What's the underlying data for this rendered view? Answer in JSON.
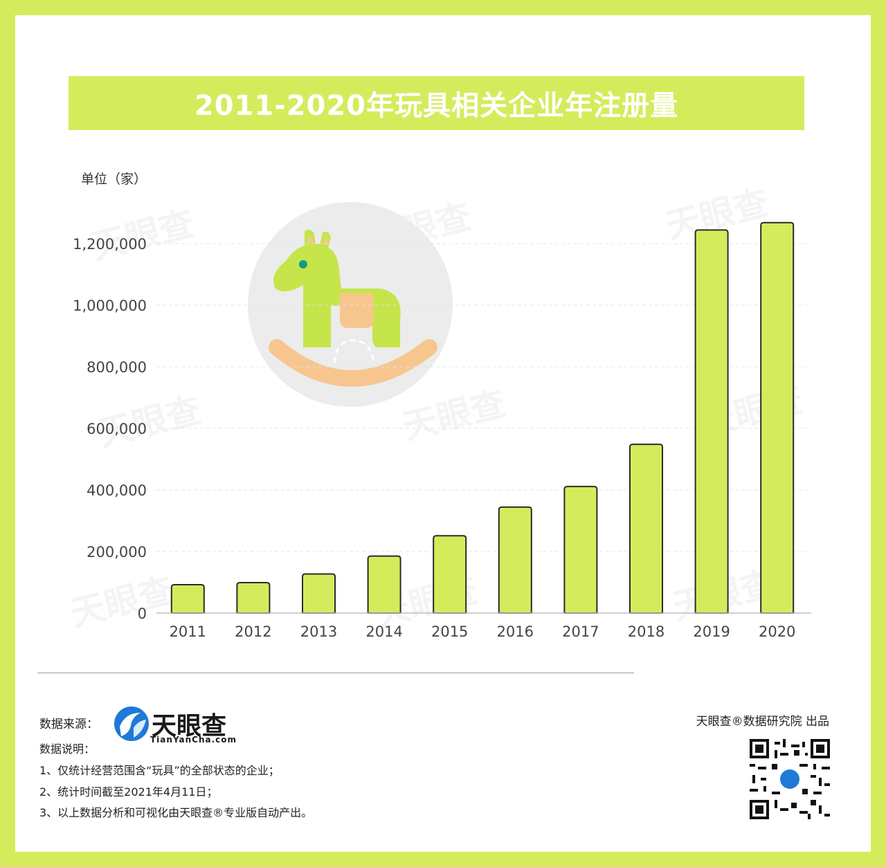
{
  "title": "2011-2020年玩具相关企业年注册量",
  "unit": "单位（家）",
  "colors": {
    "accent": "#d4ec5c",
    "bar": "#d4ec5c",
    "bar_stroke": "#2b2b2b",
    "logo_blue": "#1e7ad6"
  },
  "chart_data": {
    "type": "bar",
    "title": "2011-2020年玩具相关企业年注册量",
    "ylabel": "单位（家）",
    "categories": [
      "2011",
      "2012",
      "2013",
      "2014",
      "2015",
      "2016",
      "2017",
      "2018",
      "2019",
      "2020"
    ],
    "values": [
      92000,
      99000,
      127000,
      185000,
      251000,
      344000,
      411000,
      548000,
      1244000,
      1268000
    ],
    "ylim": [
      0,
      1300000
    ],
    "yticks": [
      0,
      200000,
      400000,
      600000,
      800000,
      1000000,
      1200000
    ],
    "ytick_labels": [
      "0",
      "200,000",
      "400,000",
      "600,000",
      "800,000",
      "1,000,000",
      "1,200,000"
    ],
    "grid": true,
    "legend": "none"
  },
  "footer": {
    "source_label": "数据来源：",
    "logo_text": "天眼查",
    "logo_url": "TianYanCha.com",
    "notes_title": "数据说明：",
    "notes": [
      "1、仅统计经营范围含“玩具”的全部状态的企业；",
      "2、统计时间截至2021年4月11日；",
      "3、以上数据分析和可视化由天眼查®专业版自动产出。"
    ],
    "producer": "天眼查®数据研究院 出品"
  },
  "watermark_text": "天眼查"
}
